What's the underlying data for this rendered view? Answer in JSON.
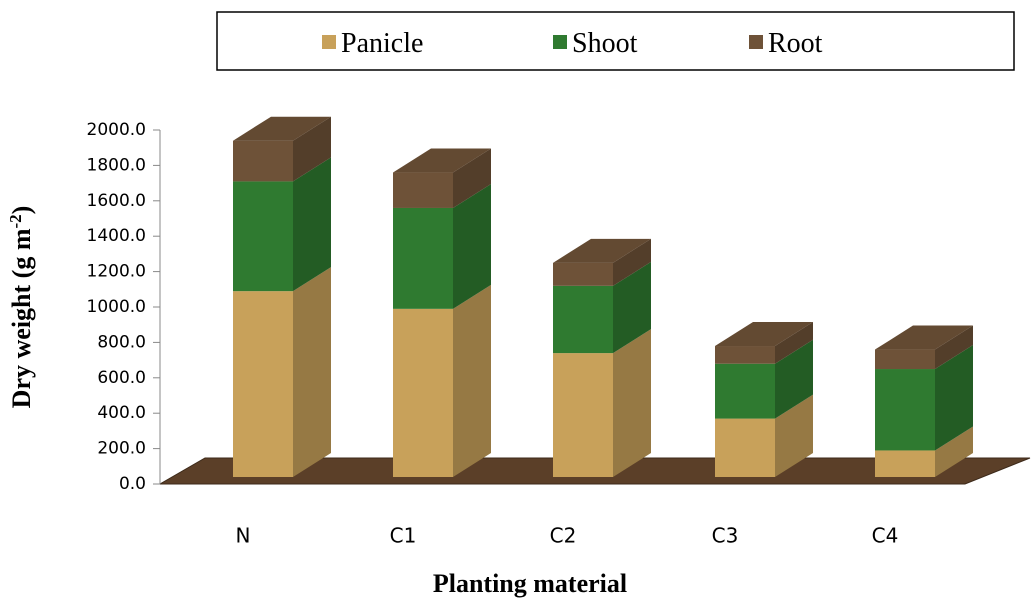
{
  "chart_data": {
    "type": "bar3d_stacked",
    "y_label": [
      "Dry weight (g m",
      "-2",
      ")"
    ],
    "x_label": "Planting material",
    "categories": [
      "N",
      "C1",
      "C2",
      "C3",
      "C4"
    ],
    "series": [
      {
        "name": "Panicle",
        "color": "#c8a15a",
        "values": [
          1050,
          950,
          700,
          330,
          150
        ]
      },
      {
        "name": "Shoot",
        "color": "#2f7a30",
        "values": [
          620,
          570,
          380,
          310,
          460
        ]
      },
      {
        "name": "Root",
        "color": "#6e5238",
        "values": [
          230,
          200,
          130,
          100,
          110
        ]
      }
    ],
    "ylim": [
      0,
      2000
    ],
    "yticks": [
      {
        "value": 0,
        "label": "0.0"
      },
      {
        "value": 200,
        "label": "200.0"
      },
      {
        "value": 400,
        "label": "400.0"
      },
      {
        "value": 600,
        "label": "600.0"
      },
      {
        "value": 800,
        "label": "800.0"
      },
      {
        "value": 1000,
        "label": "1000.0"
      },
      {
        "value": 1200,
        "label": "1200.0"
      },
      {
        "value": 1400,
        "label": "1400.0"
      },
      {
        "value": 1600,
        "label": "1600.0"
      },
      {
        "value": 1800,
        "label": "1800.0"
      },
      {
        "value": 2000,
        "label": "2000.0"
      }
    ]
  }
}
